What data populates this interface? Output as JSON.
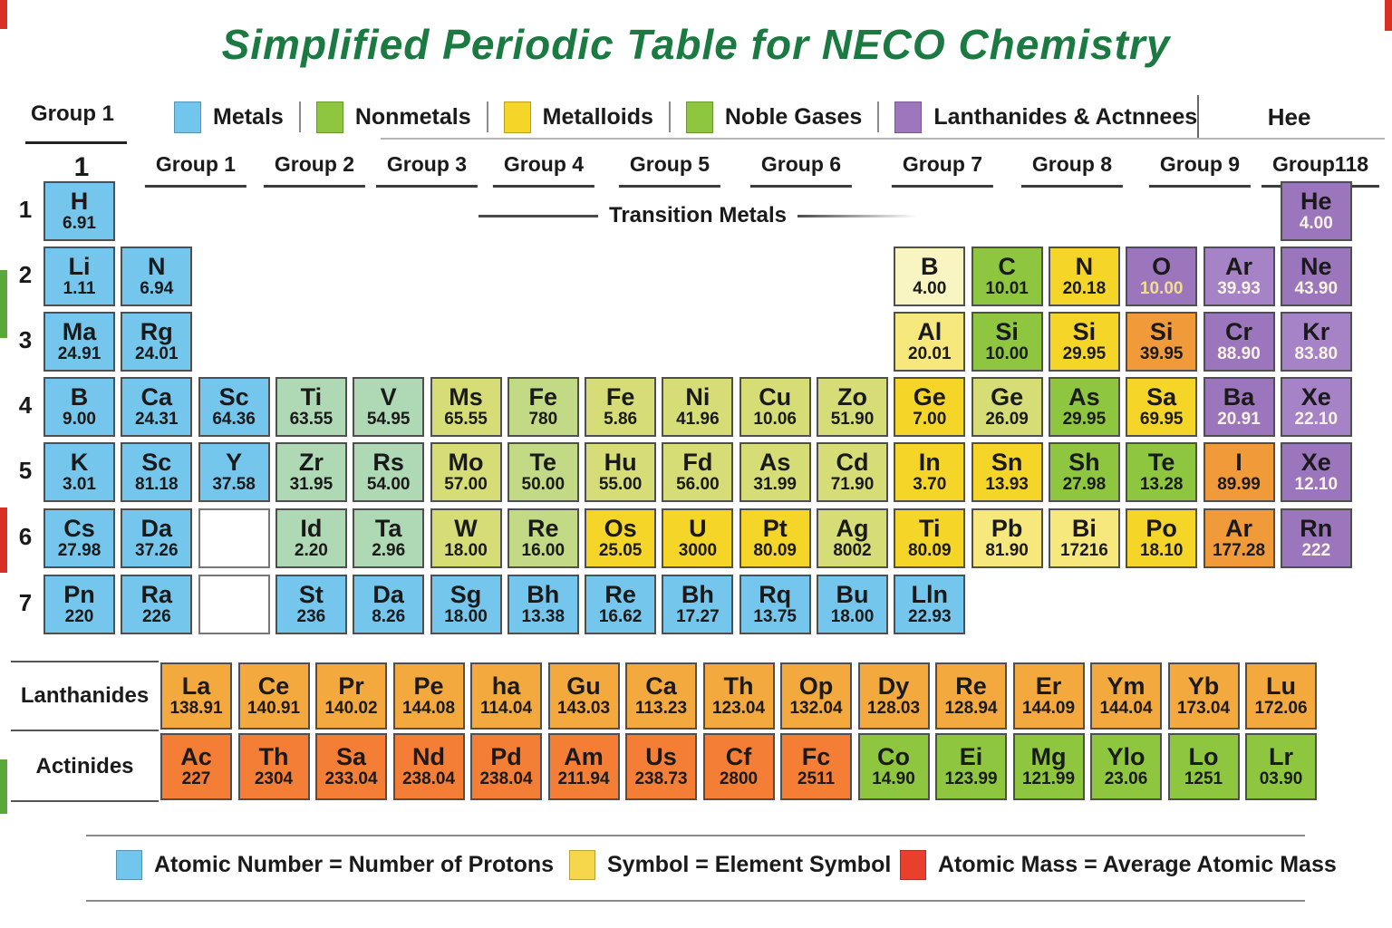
{
  "title": "Simplified Periodic Table for NECO Chemistry",
  "top_legend": {
    "group_label": "Group 1",
    "items": [
      {
        "label": "Metals",
        "color": "#72c5ec"
      },
      {
        "label": "Nonmetals",
        "color": "#8ec73f"
      },
      {
        "label": "Metalloids",
        "color": "#f5d527"
      },
      {
        "label": "Noble Gases",
        "color": "#8ec73f"
      },
      {
        "label": "Lanthanides & Actnnees",
        "color": "#9c77bd"
      }
    ],
    "right_label": "Hee"
  },
  "column_headers": [
    "1",
    "Group 1",
    "Group 2",
    "Group 3",
    "Group 4",
    "Group 5",
    "Group 6",
    "Group 7",
    "Group 8",
    "Group 9",
    "Group118"
  ],
  "transition_label": "Transition Metals",
  "palette": {
    "blue": "#74c6ec",
    "pgreen": "#afd8b4",
    "ygreen": "#d6dd76",
    "ygreen2": "#c2d985",
    "green": "#8ec73f",
    "yellow": "#f5d527",
    "pyellow": "#f8f5c3",
    "pyellow2": "#f7e87e",
    "orange": "#f09a3a",
    "purple": "#9c76bc",
    "purple2": "#a583c6",
    "lanth": "#f3a93e",
    "actin": "#f47e35",
    "agreen": "#8ec73f"
  },
  "mass_text": {
    "dark": "#1a1a1a",
    "white": "#f7f2e4",
    "cream": "#eedf8e"
  },
  "periods": [
    {
      "num": "1",
      "cells": [
        {
          "sym": "H",
          "mass": "6.91",
          "col": 1,
          "color": "blue"
        },
        {
          "sym": "He",
          "mass": "4.00",
          "col": 17,
          "color": "purple",
          "mt": "white"
        }
      ]
    },
    {
      "num": "2",
      "cells": [
        {
          "sym": "Li",
          "mass": "1.11",
          "col": 1,
          "color": "blue"
        },
        {
          "sym": "N",
          "mass": "6.94",
          "col": 2,
          "color": "blue"
        },
        {
          "sym": "B",
          "mass": "4.00",
          "col": 12,
          "color": "pyellow"
        },
        {
          "sym": "C",
          "mass": "10.01",
          "col": 13,
          "color": "green"
        },
        {
          "sym": "N",
          "mass": "20.18",
          "col": 14,
          "color": "yellow"
        },
        {
          "sym": "O",
          "mass": "10.00",
          "col": 15,
          "color": "purple",
          "mt": "cream"
        },
        {
          "sym": "Ar",
          "mass": "39.93",
          "col": 16,
          "color": "purple2",
          "mt": "white"
        },
        {
          "sym": "Ne",
          "mass": "43.90",
          "col": 17,
          "color": "purple",
          "mt": "white"
        }
      ]
    },
    {
      "num": "3",
      "cells": [
        {
          "sym": "Ma",
          "mass": "24.91",
          "col": 1,
          "color": "blue"
        },
        {
          "sym": "Rg",
          "mass": "24.01",
          "col": 2,
          "color": "blue"
        },
        {
          "sym": "Al",
          "mass": "20.01",
          "col": 12,
          "color": "pyellow2"
        },
        {
          "sym": "Si",
          "mass": "10.00",
          "col": 13,
          "color": "green"
        },
        {
          "sym": "Si",
          "mass": "29.95",
          "col": 14,
          "color": "yellow"
        },
        {
          "sym": "Si",
          "mass": "39.95",
          "col": 15,
          "color": "orange"
        },
        {
          "sym": "Cr",
          "mass": "88.90",
          "col": 16,
          "color": "purple",
          "mt": "white"
        },
        {
          "sym": "Kr",
          "mass": "83.80",
          "col": 17,
          "color": "purple2",
          "mt": "white"
        }
      ]
    },
    {
      "num": "4",
      "cells": [
        {
          "sym": "B",
          "mass": "9.00",
          "col": 1,
          "color": "blue"
        },
        {
          "sym": "Ca",
          "mass": "24.31",
          "col": 2,
          "color": "blue"
        },
        {
          "sym": "Sc",
          "mass": "64.36",
          "col": 3,
          "color": "blue"
        },
        {
          "sym": "Ti",
          "mass": "63.55",
          "col": 4,
          "color": "pgreen"
        },
        {
          "sym": "V",
          "mass": "54.95",
          "col": 5,
          "color": "pgreen"
        },
        {
          "sym": "Ms",
          "mass": "65.55",
          "col": 6,
          "color": "ygreen"
        },
        {
          "sym": "Fe",
          "mass": "780",
          "col": 7,
          "color": "ygreen2"
        },
        {
          "sym": "Fe",
          "mass": "5.86",
          "col": 8,
          "color": "ygreen"
        },
        {
          "sym": "Ni",
          "mass": "41.96",
          "col": 9,
          "color": "ygreen"
        },
        {
          "sym": "Cu",
          "mass": "10.06",
          "col": 10,
          "color": "ygreen"
        },
        {
          "sym": "Zo",
          "mass": "51.90",
          "col": 11,
          "color": "ygreen"
        },
        {
          "sym": "Ge",
          "mass": "7.00",
          "col": 12,
          "color": "yellow"
        },
        {
          "sym": "Ge",
          "mass": "26.09",
          "col": 13,
          "color": "ygreen"
        },
        {
          "sym": "As",
          "mass": "29.95",
          "col": 14,
          "color": "green"
        },
        {
          "sym": "Sa",
          "mass": "69.95",
          "col": 15,
          "color": "yellow"
        },
        {
          "sym": "Ba",
          "mass": "20.91",
          "col": 16,
          "color": "purple",
          "mt": "white"
        },
        {
          "sym": "Xe",
          "mass": "22.10",
          "col": 17,
          "color": "purple2",
          "mt": "white"
        }
      ]
    },
    {
      "num": "5",
      "cells": [
        {
          "sym": "K",
          "mass": "3.01",
          "col": 1,
          "color": "blue"
        },
        {
          "sym": "Sc",
          "mass": "81.18",
          "col": 2,
          "color": "blue"
        },
        {
          "sym": "Y",
          "mass": "37.58",
          "col": 3,
          "color": "blue"
        },
        {
          "sym": "Zr",
          "mass": "31.95",
          "col": 4,
          "color": "pgreen"
        },
        {
          "sym": "Rs",
          "mass": "54.00",
          "col": 5,
          "color": "pgreen"
        },
        {
          "sym": "Mo",
          "mass": "57.00",
          "col": 6,
          "color": "ygreen"
        },
        {
          "sym": "Te",
          "mass": "50.00",
          "col": 7,
          "color": "ygreen2"
        },
        {
          "sym": "Hu",
          "mass": "55.00",
          "col": 8,
          "color": "ygreen"
        },
        {
          "sym": "Fd",
          "mass": "56.00",
          "col": 9,
          "color": "ygreen"
        },
        {
          "sym": "As",
          "mass": "31.99",
          "col": 10,
          "color": "ygreen"
        },
        {
          "sym": "Cd",
          "mass": "71.90",
          "col": 11,
          "color": "ygreen"
        },
        {
          "sym": "In",
          "mass": "3.70",
          "col": 12,
          "color": "yellow"
        },
        {
          "sym": "Sn",
          "mass": "13.93",
          "col": 13,
          "color": "yellow"
        },
        {
          "sym": "Sh",
          "mass": "27.98",
          "col": 14,
          "color": "green"
        },
        {
          "sym": "Te",
          "mass": "13.28",
          "col": 15,
          "color": "green"
        },
        {
          "sym": "I",
          "mass": "89.99",
          "col": 16,
          "color": "orange"
        },
        {
          "sym": "Xe",
          "mass": "12.10",
          "col": 17,
          "color": "purple",
          "mt": "white"
        }
      ]
    },
    {
      "num": "6",
      "cells": [
        {
          "sym": "Cs",
          "mass": "27.98",
          "col": 1,
          "color": "blue"
        },
        {
          "sym": "Da",
          "mass": "37.26",
          "col": 2,
          "color": "blue"
        },
        {
          "empty": true,
          "col": 3
        },
        {
          "sym": "Id",
          "mass": "2.20",
          "col": 4,
          "color": "pgreen"
        },
        {
          "sym": "Ta",
          "mass": "2.96",
          "col": 5,
          "color": "pgreen"
        },
        {
          "sym": "W",
          "mass": "18.00",
          "col": 6,
          "color": "ygreen"
        },
        {
          "sym": "Re",
          "mass": "16.00",
          "col": 7,
          "color": "ygreen2"
        },
        {
          "sym": "Os",
          "mass": "25.05",
          "col": 8,
          "color": "yellow"
        },
        {
          "sym": "U",
          "mass": "3000",
          "col": 9,
          "color": "yellow"
        },
        {
          "sym": "Pt",
          "mass": "80.09",
          "col": 10,
          "color": "yellow"
        },
        {
          "sym": "Ag",
          "mass": "8002",
          "col": 11,
          "color": "ygreen"
        },
        {
          "sym": "Ti",
          "mass": "80.09",
          "col": 12,
          "color": "yellow"
        },
        {
          "sym": "Pb",
          "mass": "81.90",
          "col": 13,
          "color": "pyellow2"
        },
        {
          "sym": "Bi",
          "mass": "17216",
          "col": 14,
          "color": "pyellow2"
        },
        {
          "sym": "Po",
          "mass": "18.10",
          "col": 15,
          "color": "yellow"
        },
        {
          "sym": "Ar",
          "mass": "177.28",
          "col": 16,
          "color": "orange"
        },
        {
          "sym": "Rn",
          "mass": "222",
          "col": 17,
          "color": "purple",
          "mt": "white"
        }
      ]
    },
    {
      "num": "7",
      "cells": [
        {
          "sym": "Pn",
          "mass": "220",
          "col": 1,
          "color": "blue"
        },
        {
          "sym": "Ra",
          "mass": "226",
          "col": 2,
          "color": "blue"
        },
        {
          "empty": true,
          "col": 3
        },
        {
          "sym": "St",
          "mass": "236",
          "col": 4,
          "color": "blue"
        },
        {
          "sym": "Da",
          "mass": "8.26",
          "col": 5,
          "color": "blue"
        },
        {
          "sym": "Sg",
          "mass": "18.00",
          "col": 6,
          "color": "blue"
        },
        {
          "sym": "Bh",
          "mass": "13.38",
          "col": 7,
          "color": "blue"
        },
        {
          "sym": "Re",
          "mass": "16.62",
          "col": 8,
          "color": "blue"
        },
        {
          "sym": "Bh",
          "mass": "17.27",
          "col": 9,
          "color": "blue"
        },
        {
          "sym": "Rq",
          "mass": "13.75",
          "col": 10,
          "color": "blue"
        },
        {
          "sym": "Bu",
          "mass": "18.00",
          "col": 11,
          "color": "blue"
        },
        {
          "sym": "Lln",
          "mass": "22.93",
          "col": 12,
          "color": "blue"
        }
      ]
    }
  ],
  "lanthanides": {
    "label": "Lanthanides",
    "cells": [
      {
        "sym": "La",
        "mass": "138.91",
        "color": "lanth"
      },
      {
        "sym": "Ce",
        "mass": "140.91",
        "color": "lanth"
      },
      {
        "sym": "Pr",
        "mass": "140.02",
        "color": "lanth"
      },
      {
        "sym": "Pe",
        "mass": "144.08",
        "color": "lanth"
      },
      {
        "sym": "ha",
        "mass": "114.04",
        "color": "lanth"
      },
      {
        "sym": "Gu",
        "mass": "143.03",
        "color": "lanth"
      },
      {
        "sym": "Ca",
        "mass": "113.23",
        "color": "lanth"
      },
      {
        "sym": "Th",
        "mass": "123.04",
        "color": "lanth"
      },
      {
        "sym": "Op",
        "mass": "132.04",
        "color": "lanth"
      },
      {
        "sym": "Dy",
        "mass": "128.03",
        "color": "lanth"
      },
      {
        "sym": "Re",
        "mass": "128.94",
        "color": "lanth"
      },
      {
        "sym": "Er",
        "mass": "144.09",
        "color": "lanth"
      },
      {
        "sym": "Ym",
        "mass": "144.04",
        "color": "lanth"
      },
      {
        "sym": "Yb",
        "mass": "173.04",
        "color": "lanth"
      },
      {
        "sym": "Lu",
        "mass": "172.06",
        "color": "lanth"
      }
    ]
  },
  "actinides": {
    "label": "Actinides",
    "cells": [
      {
        "sym": "Ac",
        "mass": "227",
        "color": "actin"
      },
      {
        "sym": "Th",
        "mass": "2304",
        "color": "actin"
      },
      {
        "sym": "Sa",
        "mass": "233.04",
        "color": "actin"
      },
      {
        "sym": "Nd",
        "mass": "238.04",
        "color": "actin"
      },
      {
        "sym": "Pd",
        "mass": "238.04",
        "color": "actin"
      },
      {
        "sym": "Am",
        "mass": "211.94",
        "color": "actin"
      },
      {
        "sym": "Us",
        "mass": "238.73",
        "color": "actin"
      },
      {
        "sym": "Cf",
        "mass": "2800",
        "color": "actin"
      },
      {
        "sym": "Fc",
        "mass": "2511",
        "color": "actin"
      },
      {
        "sym": "Co",
        "mass": "14.90",
        "color": "agreen"
      },
      {
        "sym": "Ei",
        "mass": "123.99",
        "color": "agreen"
      },
      {
        "sym": "Mg",
        "mass": "121.99",
        "color": "agreen"
      },
      {
        "sym": "Ylo",
        "mass": "23.06",
        "color": "agreen"
      },
      {
        "sym": "Lo",
        "mass": "1251",
        "color": "agreen"
      },
      {
        "sym": "Lr",
        "mass": "03.90",
        "color": "agreen"
      }
    ]
  },
  "bottom_legend": [
    {
      "swatch": "#72c5ec",
      "text": "Atomic Number = Number of Protons"
    },
    {
      "swatch": "#f6d64a",
      "text": "Symbol = Element Symbol"
    },
    {
      "swatch": "#e8402c",
      "text": "Atomic Mass = Average Atomic Mass"
    }
  ]
}
